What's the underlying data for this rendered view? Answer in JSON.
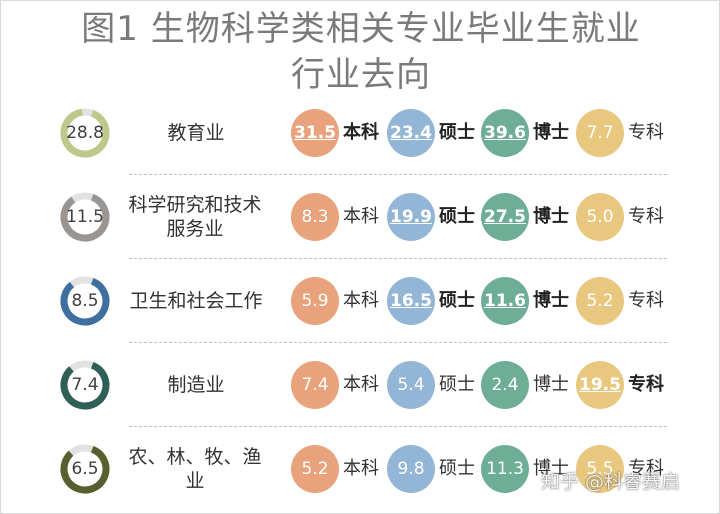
{
  "title_line1": "图1 生物科学类相关专业毕业生就业",
  "title_line2": "行业去向",
  "watermark": "知乎 @科睿赛启",
  "colors": {
    "bachelor": "#E8A27C",
    "master": "#93B6D6",
    "phd": "#6FAE96",
    "college": "#E8C77F",
    "ring_track": "#e2e2e2"
  },
  "chart_data": {
    "type": "table",
    "title": "图1 生物科学类相关专业毕业生就业行业去向",
    "degrees": [
      "本科",
      "硕士",
      "博士",
      "专科"
    ],
    "rows": [
      {
        "industry": "教育业",
        "total": 28.8,
        "values": [
          31.5,
          23.4,
          39.6,
          7.7
        ],
        "highlight": [
          true,
          true,
          true,
          false
        ],
        "ring_color": "#BDC98A"
      },
      {
        "industry": "科学研究和技术服务业",
        "total": 11.5,
        "values": [
          8.3,
          19.9,
          27.5,
          5.0
        ],
        "highlight": [
          false,
          true,
          true,
          false
        ],
        "ring_color": "#9A9590"
      },
      {
        "industry": "卫生和社会工作",
        "total": 8.5,
        "values": [
          5.9,
          16.5,
          11.6,
          5.2
        ],
        "highlight": [
          false,
          true,
          true,
          false
        ],
        "ring_color": "#3F6FA0"
      },
      {
        "industry": "制造业",
        "total": 7.4,
        "values": [
          7.4,
          5.4,
          2.4,
          19.5
        ],
        "highlight": [
          false,
          false,
          false,
          true
        ],
        "ring_color": "#2F5F56"
      },
      {
        "industry": "农、林、牧、渔业",
        "total": 6.5,
        "values": [
          5.2,
          9.8,
          11.3,
          5.5
        ],
        "highlight": [
          false,
          false,
          false,
          false
        ],
        "ring_color": "#56602F"
      }
    ]
  }
}
